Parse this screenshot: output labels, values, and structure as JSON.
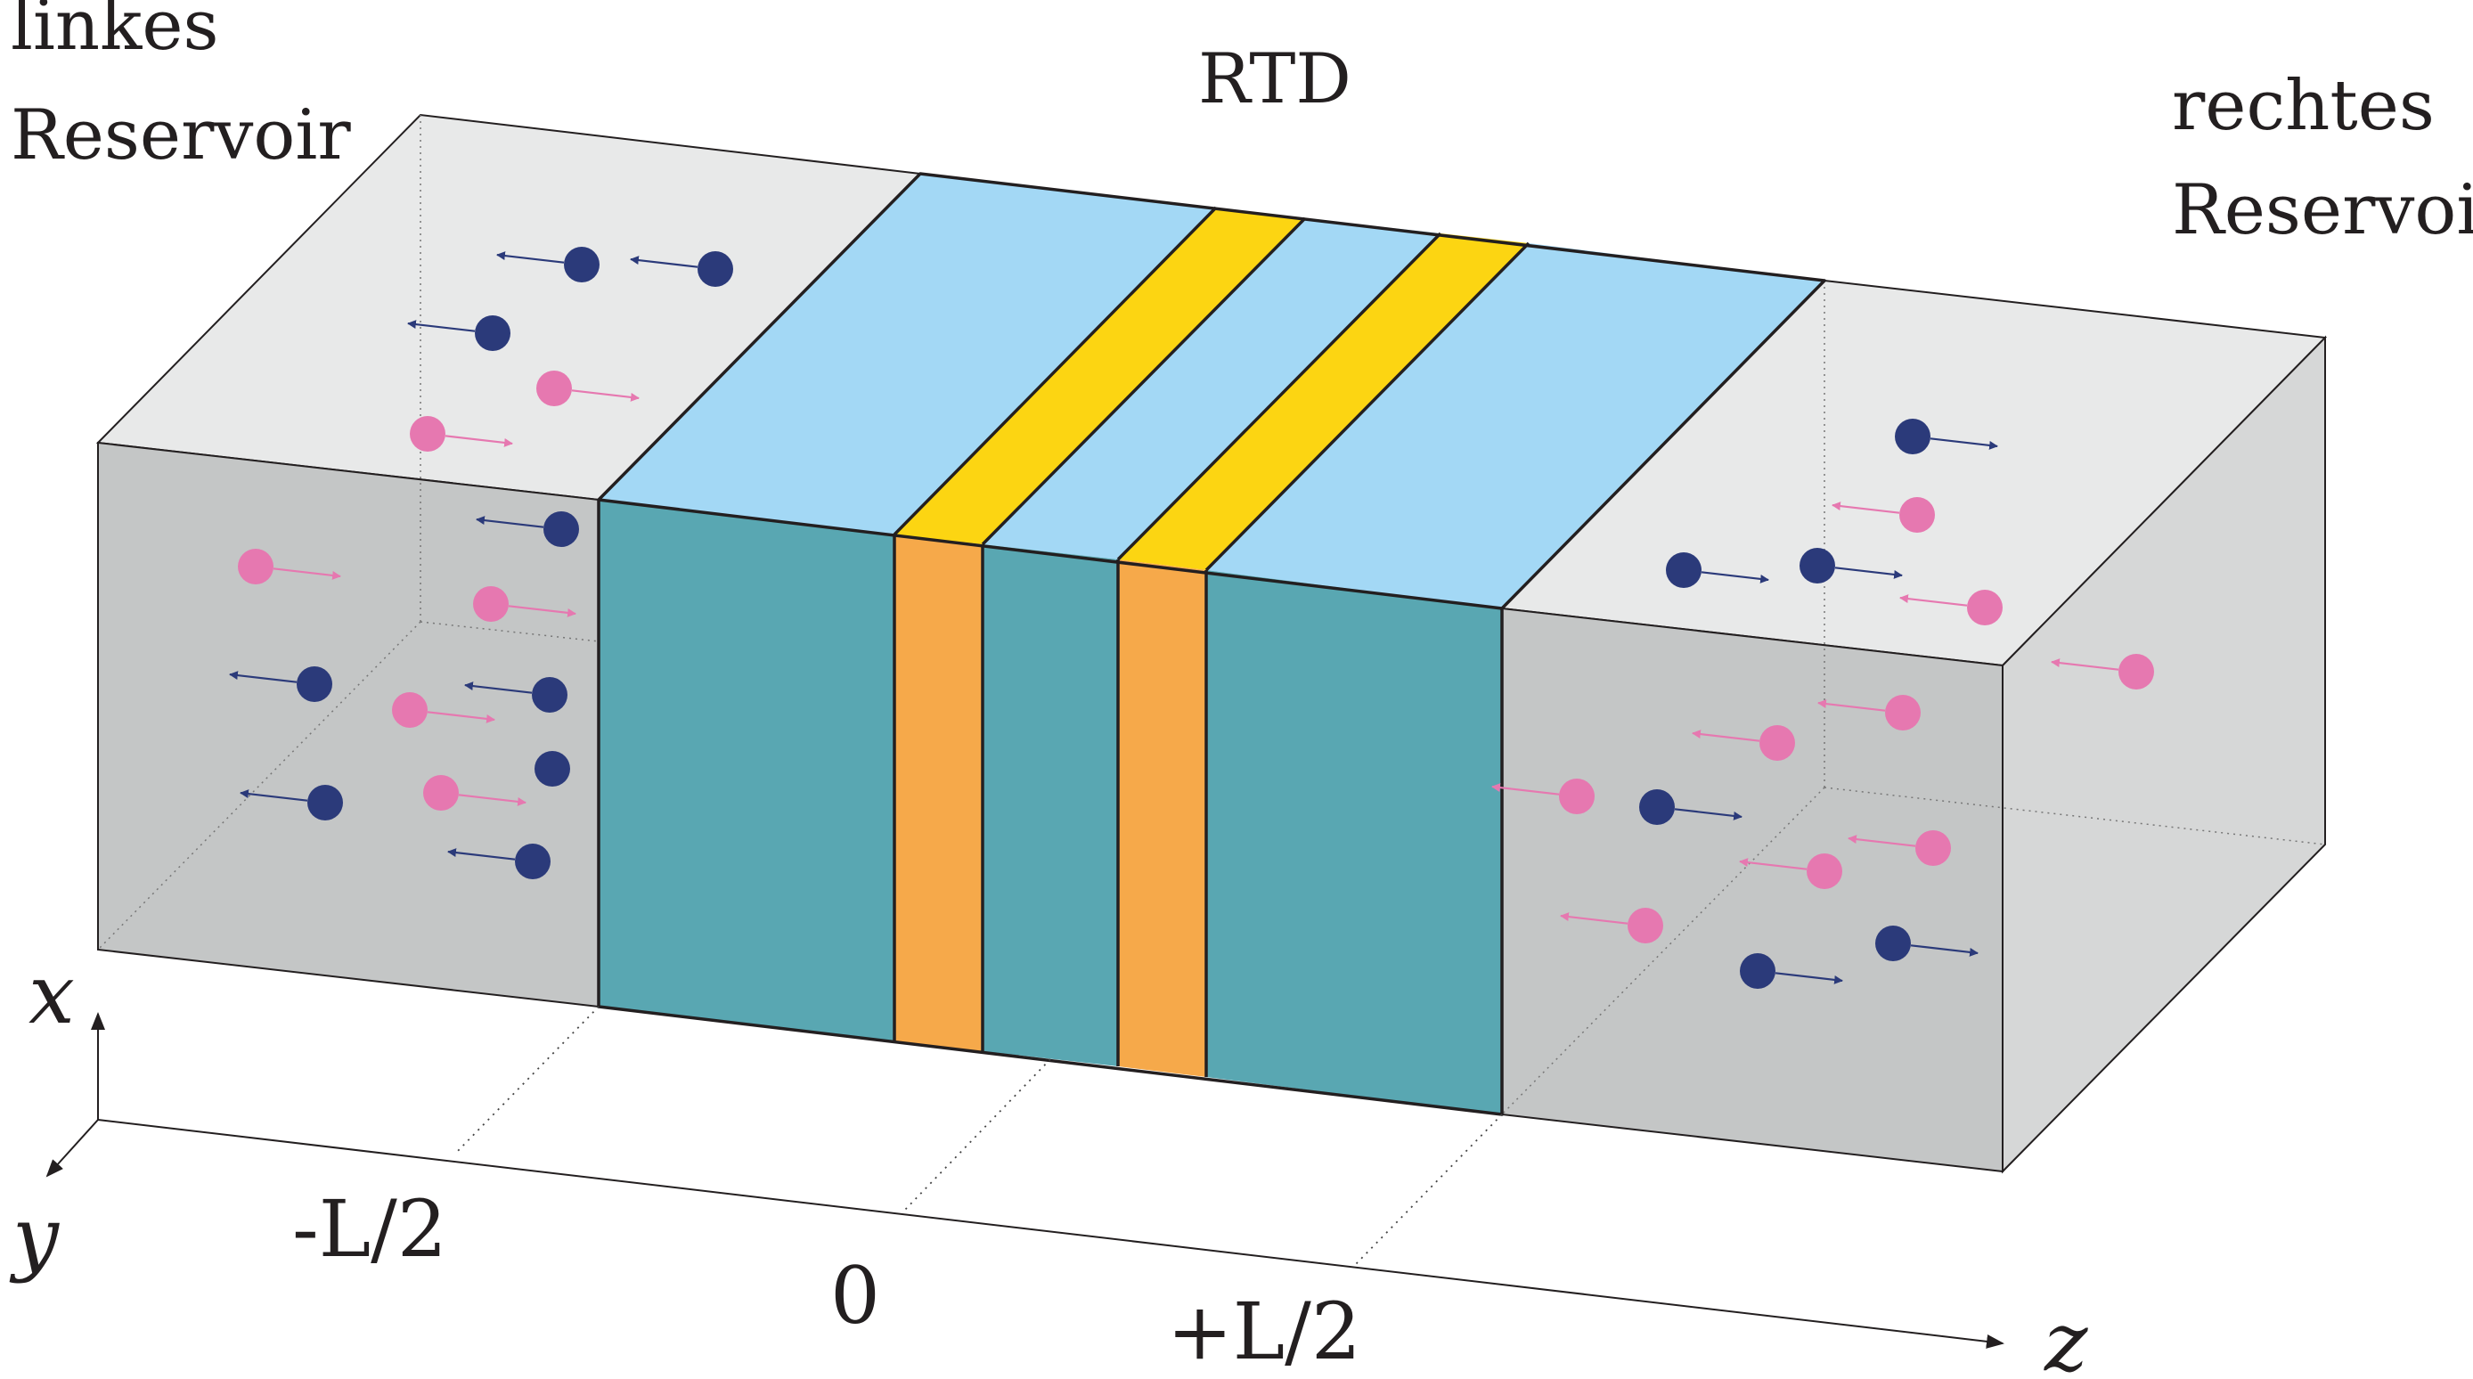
{
  "labels": {
    "left_reservoir_line1": "linkes",
    "left_reservoir_line2": "Reservoir",
    "right_reservoir_line1": "rechtes",
    "right_reservoir_line2": "Reservoir",
    "device": "RTD",
    "tick_minus": "-L/2",
    "tick_zero": "0",
    "tick_plus": "+L/2",
    "axis_x": "x",
    "axis_y": "y",
    "axis_z": "z"
  },
  "colors": {
    "reservoir_top": "#e8e9e9",
    "reservoir_front": "#c4c6c6",
    "reservoir_side": "#d6d7d7",
    "spacer_top": "#a3d8f5",
    "spacer_front": "#59a7b2",
    "barrier_top": "#fcd512",
    "barrier_front": "#f6a94a",
    "electron_left_moving": "#2b3a7a",
    "electron_right_moving": "#e678b0",
    "outline": "#231f20"
  },
  "particles": {
    "navy": [
      [
        653,
        297,
        -1
      ],
      [
        803,
        302,
        -1
      ],
      [
        553,
        374,
        -1
      ],
      [
        630,
        594,
        -1
      ],
      [
        353,
        768,
        -1
      ],
      [
        617,
        780,
        -1
      ],
      [
        620,
        863,
        0
      ],
      [
        365,
        901,
        -1
      ],
      [
        598,
        967,
        -1
      ],
      [
        2147,
        490,
        1
      ],
      [
        1890,
        640,
        1
      ],
      [
        2040,
        635,
        1
      ],
      [
        1860,
        906,
        1
      ],
      [
        1973,
        1090,
        1
      ],
      [
        2125,
        1059,
        1
      ]
    ],
    "pink": [
      [
        622,
        436,
        1
      ],
      [
        480,
        487,
        1
      ],
      [
        287,
        636,
        1
      ],
      [
        551,
        678,
        1
      ],
      [
        460,
        797,
        1
      ],
      [
        495,
        890,
        1
      ],
      [
        2152,
        578,
        -1
      ],
      [
        2228,
        682,
        -1
      ],
      [
        2136,
        800,
        -1
      ],
      [
        2398,
        754,
        -1
      ],
      [
        1995,
        834,
        -1
      ],
      [
        1770,
        894,
        -1
      ],
      [
        2170,
        952,
        -1
      ],
      [
        2048,
        978,
        -1
      ],
      [
        1847,
        1039,
        -1
      ]
    ]
  }
}
